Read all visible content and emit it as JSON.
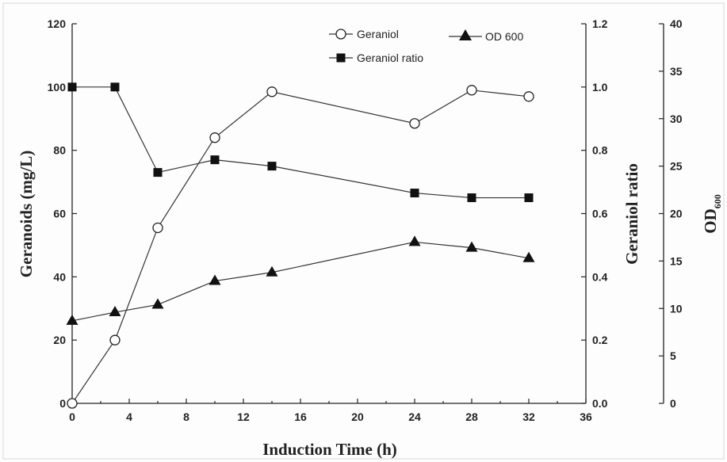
{
  "chart_data": {
    "type": "line",
    "x": [
      0,
      3,
      6,
      10,
      14,
      24,
      28,
      32
    ],
    "xlabel": "Induction Time (h)",
    "xlim": [
      0,
      36
    ],
    "xticks": [
      0,
      4,
      8,
      12,
      16,
      20,
      24,
      28,
      32,
      36
    ],
    "y_axes": {
      "left": {
        "label": "Geranoids (mg/L)",
        "lim": [
          0,
          120
        ],
        "ticks": [
          0,
          20,
          40,
          60,
          80,
          100,
          120
        ]
      },
      "right1": {
        "label": "Geraniol ratio",
        "lim": [
          0.0,
          1.2
        ],
        "ticks": [
          "0.0",
          "0.2",
          "0.4",
          "0.6",
          "0.8",
          "1.0",
          "1.2"
        ]
      },
      "right2": {
        "label_main": "OD",
        "label_sub": "600",
        "lim": [
          0,
          40
        ],
        "ticks": [
          0,
          5,
          10,
          15,
          20,
          25,
          30,
          35,
          40
        ]
      }
    },
    "series": [
      {
        "name": "Geraniol",
        "axis": "left",
        "marker": "open-circle",
        "values": [
          0,
          20,
          55.5,
          84,
          98.5,
          88.5,
          99,
          97
        ]
      },
      {
        "name": "OD 600",
        "axis": "right2",
        "marker": "filled-triangle",
        "values": [
          8.7,
          9.6,
          10.4,
          12.9,
          13.8,
          17,
          16.4,
          15.3
        ]
      },
      {
        "name": "Geraniol ratio",
        "axis": "right1",
        "marker": "filled-square",
        "values": [
          1.0,
          1.0,
          0.73,
          0.77,
          0.75,
          0.665,
          0.65,
          0.65
        ]
      }
    ],
    "legend_position": "top-center",
    "grid": false
  }
}
